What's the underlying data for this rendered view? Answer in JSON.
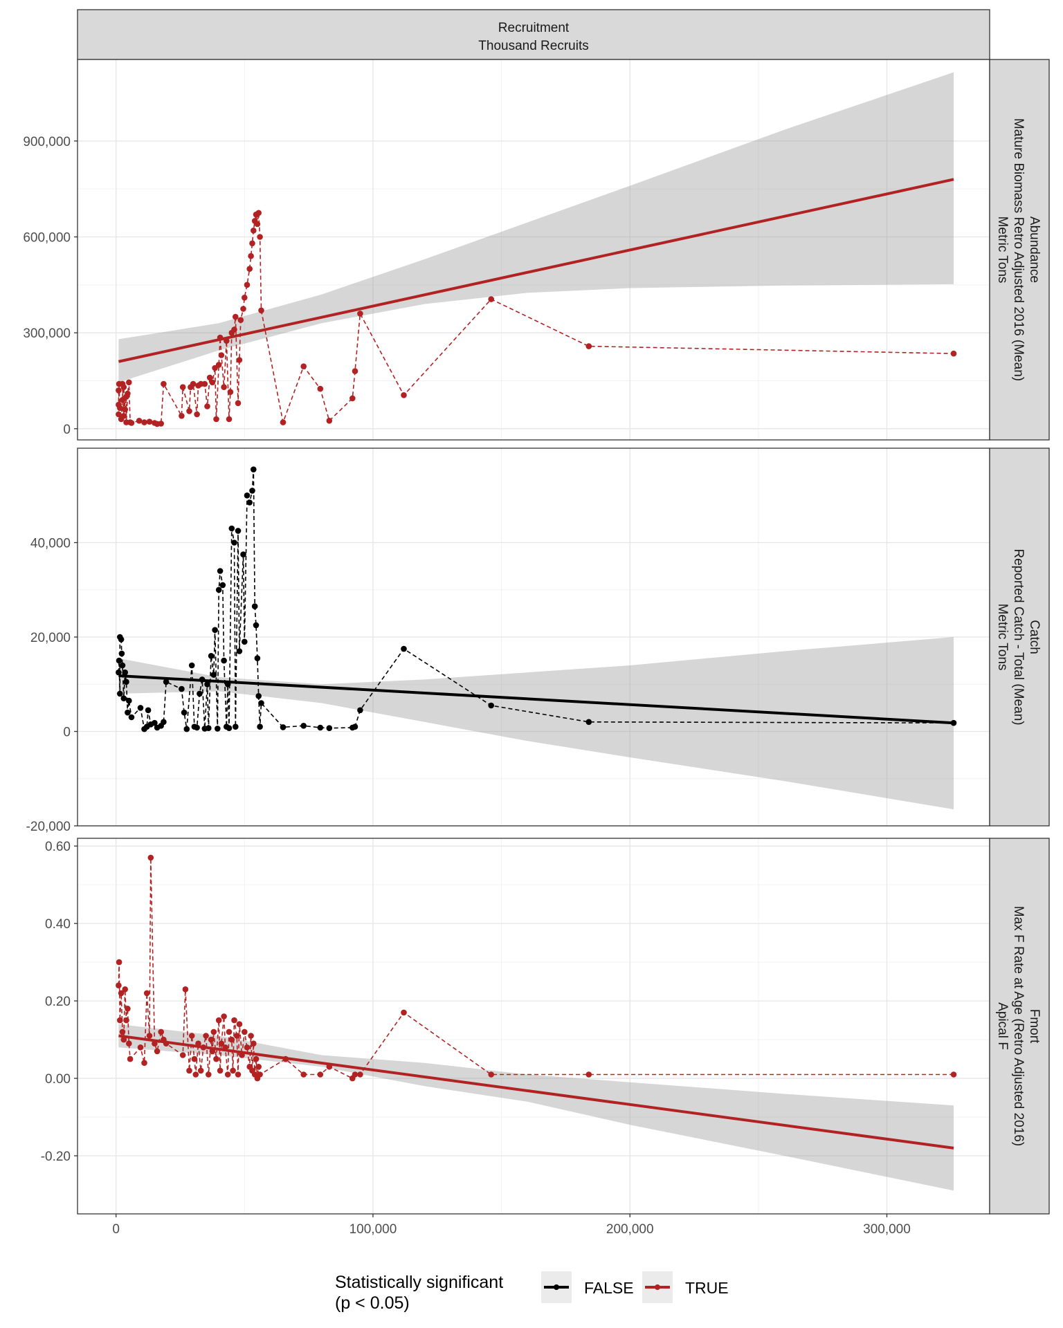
{
  "chart_data": {
    "type": "scatter",
    "facet_column_strip": [
      "Recruitment",
      "Thousand Recruits"
    ],
    "x_ticks": [
      0,
      100000,
      200000,
      300000
    ],
    "x_tick_labels": [
      "0",
      "100,000",
      "200,000",
      "300,000"
    ],
    "xlim": [
      -15000,
      340000
    ],
    "legend": {
      "title": [
        "Statistically significant",
        "(p < 0.05)"
      ],
      "position": "bottom",
      "items": [
        {
          "label": "FALSE",
          "color": "#000000"
        },
        {
          "label": "TRUE",
          "color": "#b22222"
        }
      ]
    },
    "panels": [
      {
        "strip": [
          "Abundance",
          "Mature Biomass Retro Adjusted 2016 (Mean)",
          "Metric Tons"
        ],
        "significant": true,
        "ylim": [
          -35000,
          1155000
        ],
        "y_ticks": [
          0,
          300000,
          600000,
          900000
        ],
        "y_tick_labels": [
          "0",
          "300,000",
          "600,000",
          "900,000"
        ],
        "points": [
          [
            1000,
            120000
          ],
          [
            1000,
            75000
          ],
          [
            1000,
            45000
          ],
          [
            1200,
            140000
          ],
          [
            1500,
            65000
          ],
          [
            2000,
            30000
          ],
          [
            2500,
            90000
          ],
          [
            2500,
            140000
          ],
          [
            3000,
            40000
          ],
          [
            3000,
            130000
          ],
          [
            3500,
            60000
          ],
          [
            4000,
            100000
          ],
          [
            4000,
            20000
          ],
          [
            4500,
            110000
          ],
          [
            5000,
            145000
          ],
          [
            5500,
            20000
          ],
          [
            6000,
            18000
          ],
          [
            9000,
            25000
          ],
          [
            11000,
            20000
          ],
          [
            13000,
            22000
          ],
          [
            15000,
            18000
          ],
          [
            16000,
            15000
          ],
          [
            17500,
            16000
          ],
          [
            18500,
            140000
          ],
          [
            25500,
            40000
          ],
          [
            26000,
            130000
          ],
          [
            28500,
            55000
          ],
          [
            29000,
            130000
          ],
          [
            30000,
            140000
          ],
          [
            31500,
            45000
          ],
          [
            32000,
            135000
          ],
          [
            33000,
            140000
          ],
          [
            34500,
            140000
          ],
          [
            35500,
            70000
          ],
          [
            36500,
            160000
          ],
          [
            37500,
            145000
          ],
          [
            38500,
            190000
          ],
          [
            39000,
            30000
          ],
          [
            40000,
            200000
          ],
          [
            40500,
            285000
          ],
          [
            41000,
            230000
          ],
          [
            42000,
            130000
          ],
          [
            43000,
            275000
          ],
          [
            44000,
            30000
          ],
          [
            44500,
            115000
          ],
          [
            45000,
            300000
          ],
          [
            46000,
            310000
          ],
          [
            46500,
            350000
          ],
          [
            47500,
            80000
          ],
          [
            48000,
            215000
          ],
          [
            48500,
            340000
          ],
          [
            49500,
            375000
          ],
          [
            50000,
            410000
          ],
          [
            51000,
            450000
          ],
          [
            52000,
            500000
          ],
          [
            52500,
            540000
          ],
          [
            53000,
            580000
          ],
          [
            53500,
            620000
          ],
          [
            54000,
            650000
          ],
          [
            54500,
            670000
          ],
          [
            55000,
            640000
          ],
          [
            55500,
            675000
          ],
          [
            56000,
            600000
          ],
          [
            56500,
            370000
          ],
          [
            65000,
            20000
          ],
          [
            73000,
            195000
          ],
          [
            79500,
            125000
          ],
          [
            83000,
            25000
          ],
          [
            92000,
            95000
          ],
          [
            93000,
            180000
          ],
          [
            95000,
            360000
          ],
          [
            112000,
            105000
          ],
          [
            146000,
            405000
          ],
          [
            184000,
            258000
          ],
          [
            326000,
            235000
          ]
        ],
        "fit": {
          "x": [
            1000,
            326000
          ],
          "y": [
            210000,
            780000
          ]
        },
        "band_lower": [
          [
            1000,
            145000
          ],
          [
            40000,
            245000
          ],
          [
            80000,
            330000
          ],
          [
            120000,
            390000
          ],
          [
            160000,
            425000
          ],
          [
            200000,
            440000
          ],
          [
            260000,
            448000
          ],
          [
            326000,
            452000
          ]
        ],
        "band_upper": [
          [
            1000,
            280000
          ],
          [
            40000,
            330000
          ],
          [
            80000,
            420000
          ],
          [
            120000,
            530000
          ],
          [
            160000,
            645000
          ],
          [
            200000,
            760000
          ],
          [
            260000,
            935000
          ],
          [
            326000,
            1115000
          ]
        ]
      },
      {
        "strip": [
          "Catch",
          "Reported Catch - Total (Mean)",
          "Metric Tons"
        ],
        "significant": false,
        "ylim": [
          -20000,
          60000
        ],
        "y_ticks": [
          -20000,
          0,
          20000,
          40000
        ],
        "y_tick_labels": [
          "-20,000",
          "0",
          "20,000",
          "40,000"
        ],
        "points": [
          [
            1000,
            12500
          ],
          [
            1200,
            15000
          ],
          [
            1500,
            8000
          ],
          [
            1500,
            20000
          ],
          [
            2000,
            19500
          ],
          [
            2200,
            16500
          ],
          [
            2500,
            14000
          ],
          [
            3000,
            7000
          ],
          [
            3500,
            12500
          ],
          [
            4000,
            10500
          ],
          [
            4500,
            4000
          ],
          [
            5000,
            6500
          ],
          [
            6000,
            3000
          ],
          [
            9500,
            5000
          ],
          [
            11000,
            500
          ],
          [
            12000,
            1000
          ],
          [
            12500,
            4500
          ],
          [
            13500,
            1500
          ],
          [
            15000,
            1800
          ],
          [
            16000,
            800
          ],
          [
            17500,
            1200
          ],
          [
            18500,
            2000
          ],
          [
            19500,
            10500
          ],
          [
            25500,
            9000
          ],
          [
            26500,
            4000
          ],
          [
            27500,
            500
          ],
          [
            29500,
            14000
          ],
          [
            30500,
            1000
          ],
          [
            31500,
            800
          ],
          [
            32500,
            8000
          ],
          [
            33500,
            11000
          ],
          [
            34500,
            600
          ],
          [
            35500,
            10000
          ],
          [
            36000,
            700
          ],
          [
            37000,
            16000
          ],
          [
            38000,
            12000
          ],
          [
            38500,
            21500
          ],
          [
            39500,
            600
          ],
          [
            40000,
            30000
          ],
          [
            40500,
            34000
          ],
          [
            41500,
            31000
          ],
          [
            42000,
            15000
          ],
          [
            43000,
            1000
          ],
          [
            43500,
            10000
          ],
          [
            44000,
            700
          ],
          [
            45000,
            43000
          ],
          [
            46000,
            40000
          ],
          [
            46500,
            1000
          ],
          [
            47500,
            42500
          ],
          [
            48000,
            17000
          ],
          [
            49500,
            37500
          ],
          [
            50000,
            19000
          ],
          [
            51000,
            50000
          ],
          [
            52000,
            48500
          ],
          [
            53000,
            51000
          ],
          [
            53500,
            55500
          ],
          [
            54000,
            26500
          ],
          [
            54500,
            22500
          ],
          [
            55000,
            15500
          ],
          [
            55500,
            7500
          ],
          [
            56000,
            1000
          ],
          [
            56500,
            6000
          ],
          [
            65000,
            900
          ],
          [
            73000,
            1200
          ],
          [
            79500,
            800
          ],
          [
            83000,
            700
          ],
          [
            92000,
            800
          ],
          [
            93000,
            1000
          ],
          [
            95000,
            4500
          ],
          [
            112000,
            17500
          ],
          [
            146000,
            5500
          ],
          [
            184000,
            2000
          ],
          [
            326000,
            1800
          ]
        ],
        "fit": {
          "x": [
            1000,
            326000
          ],
          "y": [
            11800,
            1800
          ]
        },
        "band_lower": [
          [
            1000,
            8000
          ],
          [
            40000,
            8500
          ],
          [
            80000,
            6000
          ],
          [
            120000,
            2000
          ],
          [
            160000,
            -2000
          ],
          [
            200000,
            -5500
          ],
          [
            260000,
            -10500
          ],
          [
            326000,
            -16500
          ]
        ],
        "band_upper": [
          [
            1000,
            15500
          ],
          [
            40000,
            11500
          ],
          [
            80000,
            10000
          ],
          [
            120000,
            11000
          ],
          [
            160000,
            12500
          ],
          [
            200000,
            14000
          ],
          [
            260000,
            17000
          ],
          [
            326000,
            20000
          ]
        ]
      },
      {
        "strip": [
          "Fmort",
          "Max F Rate at Age (Retro Adjusted 2016)",
          "Apical F"
        ],
        "significant": true,
        "ylim": [
          -0.35,
          0.62
        ],
        "y_ticks": [
          -0.2,
          0.0,
          0.2,
          0.4,
          0.6
        ],
        "y_tick_labels": [
          "-0.20",
          "0.00",
          "0.20",
          "0.40",
          "0.60"
        ],
        "points": [
          [
            1000,
            0.24
          ],
          [
            1200,
            0.3
          ],
          [
            1500,
            0.15
          ],
          [
            2000,
            0.22
          ],
          [
            2500,
            0.12
          ],
          [
            3000,
            0.1
          ],
          [
            3500,
            0.23
          ],
          [
            4000,
            0.15
          ],
          [
            4500,
            0.18
          ],
          [
            5000,
            0.09
          ],
          [
            5500,
            0.05
          ],
          [
            9500,
            0.08
          ],
          [
            11000,
            0.04
          ],
          [
            12000,
            0.22
          ],
          [
            13000,
            0.11
          ],
          [
            13500,
            0.57
          ],
          [
            15000,
            0.09
          ],
          [
            16000,
            0.07
          ],
          [
            17500,
            0.12
          ],
          [
            18500,
            0.1
          ],
          [
            19500,
            0.09
          ],
          [
            26000,
            0.06
          ],
          [
            27000,
            0.23
          ],
          [
            28500,
            0.02
          ],
          [
            29500,
            0.11
          ],
          [
            30500,
            0.05
          ],
          [
            31000,
            0.01
          ],
          [
            32000,
            0.09
          ],
          [
            33000,
            0.02
          ],
          [
            34000,
            0.08
          ],
          [
            35000,
            0.11
          ],
          [
            36000,
            0.01
          ],
          [
            37000,
            0.1
          ],
          [
            37500,
            0.07
          ],
          [
            38000,
            0.12
          ],
          [
            39000,
            0.05
          ],
          [
            40000,
            0.15
          ],
          [
            40500,
            0.02
          ],
          [
            41000,
            0.09
          ],
          [
            42000,
            0.16
          ],
          [
            42500,
            0.08
          ],
          [
            43500,
            0.01
          ],
          [
            44000,
            0.12
          ],
          [
            45000,
            0.1
          ],
          [
            45500,
            0.02
          ],
          [
            46000,
            0.15
          ],
          [
            47000,
            0.11
          ],
          [
            47500,
            0.01
          ],
          [
            48000,
            0.14
          ],
          [
            49000,
            0.06
          ],
          [
            50000,
            0.12
          ],
          [
            51000,
            0.08
          ],
          [
            52000,
            0.03
          ],
          [
            52500,
            0.11
          ],
          [
            53000,
            0.02
          ],
          [
            53500,
            0.09
          ],
          [
            54000,
            0.01
          ],
          [
            54500,
            0.05
          ],
          [
            55000,
            0.0
          ],
          [
            55500,
            0.03
          ],
          [
            56000,
            0.01
          ],
          [
            66000,
            0.05
          ],
          [
            73000,
            0.01
          ],
          [
            79500,
            0.01
          ],
          [
            83000,
            0.03
          ],
          [
            92000,
            0.0
          ],
          [
            93000,
            0.01
          ],
          [
            95000,
            0.01
          ],
          [
            112000,
            0.17
          ],
          [
            146000,
            0.01
          ],
          [
            184000,
            0.01
          ],
          [
            326000,
            0.01
          ]
        ],
        "fit": {
          "x": [
            1000,
            326000
          ],
          "y": [
            0.11,
            -0.18
          ]
        },
        "band_lower": [
          [
            1000,
            0.08
          ],
          [
            40000,
            0.06
          ],
          [
            80000,
            0.03
          ],
          [
            120000,
            -0.02
          ],
          [
            160000,
            -0.06
          ],
          [
            200000,
            -0.12
          ],
          [
            260000,
            -0.2
          ],
          [
            326000,
            -0.29
          ]
        ],
        "band_upper": [
          [
            1000,
            0.14
          ],
          [
            40000,
            0.11
          ],
          [
            80000,
            0.06
          ],
          [
            120000,
            0.04
          ],
          [
            160000,
            0.01
          ],
          [
            200000,
            -0.01
          ],
          [
            260000,
            -0.04
          ],
          [
            326000,
            -0.07
          ]
        ]
      }
    ]
  }
}
